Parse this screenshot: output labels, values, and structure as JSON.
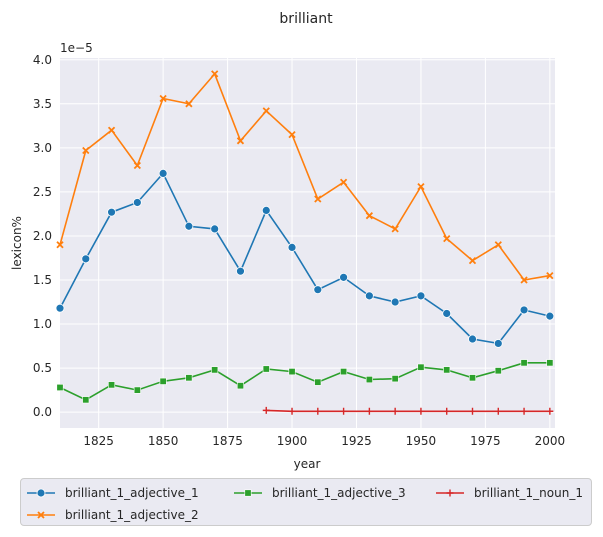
{
  "chart_data": {
    "type": "line",
    "title": "brilliant",
    "xlabel": "year",
    "ylabel": "lexicon%",
    "y_offset_label": "1e−5",
    "xlim": [
      1810,
      2002
    ],
    "ylim": [
      -0.18,
      4.02
    ],
    "x_ticks": [
      1825,
      1850,
      1875,
      1900,
      1925,
      1950,
      1975,
      2000
    ],
    "x_tick_labels": [
      "1825",
      "1850",
      "1875",
      "1900",
      "1925",
      "1950",
      "1975",
      "2000"
    ],
    "y_ticks": [
      0.0,
      0.5,
      1.0,
      1.5,
      2.0,
      2.5,
      3.0,
      3.5,
      4.0
    ],
    "y_tick_labels": [
      "0.0",
      "0.5",
      "1.0",
      "1.5",
      "2.0",
      "2.5",
      "3.0",
      "3.5",
      "4.0"
    ],
    "grid": true,
    "legend_position": "bottom",
    "series": [
      {
        "name": "brilliant_1_adjective_1",
        "color": "#1f77b4",
        "marker": "circle",
        "x": [
          1810,
          1820,
          1830,
          1840,
          1850,
          1860,
          1870,
          1880,
          1890,
          1900,
          1910,
          1920,
          1930,
          1940,
          1950,
          1960,
          1970,
          1980,
          1990,
          2000
        ],
        "y": [
          1.18,
          1.74,
          2.27,
          2.38,
          2.71,
          2.11,
          2.08,
          1.6,
          2.29,
          1.87,
          1.39,
          1.53,
          1.32,
          1.25,
          1.32,
          1.12,
          0.83,
          0.78,
          1.16,
          1.09
        ]
      },
      {
        "name": "brilliant_1_adjective_2",
        "color": "#ff7f0e",
        "marker": "x",
        "x": [
          1810,
          1820,
          1830,
          1840,
          1850,
          1860,
          1870,
          1880,
          1890,
          1900,
          1910,
          1920,
          1930,
          1940,
          1950,
          1960,
          1970,
          1980,
          1990,
          2000
        ],
        "y": [
          1.9,
          2.97,
          3.2,
          2.8,
          3.56,
          3.5,
          3.84,
          3.08,
          3.42,
          3.15,
          2.42,
          2.61,
          2.23,
          2.08,
          2.56,
          1.97,
          1.72,
          1.9,
          1.5,
          1.55
        ]
      },
      {
        "name": "brilliant_1_adjective_3",
        "color": "#2ca02c",
        "marker": "square",
        "x": [
          1810,
          1820,
          1830,
          1840,
          1850,
          1860,
          1870,
          1880,
          1890,
          1900,
          1910,
          1920,
          1930,
          1940,
          1950,
          1960,
          1970,
          1980,
          1990,
          2000
        ],
        "y": [
          0.28,
          0.14,
          0.31,
          0.25,
          0.35,
          0.39,
          0.48,
          0.3,
          0.49,
          0.46,
          0.34,
          0.46,
          0.37,
          0.38,
          0.51,
          0.48,
          0.39,
          0.47,
          0.56,
          0.56
        ]
      },
      {
        "name": "brilliant_1_noun_1",
        "color": "#d62728",
        "marker": "plus",
        "x": [
          1890,
          1900,
          1910,
          1920,
          1930,
          1940,
          1950,
          1960,
          1970,
          1980,
          1990,
          2000
        ],
        "y": [
          0.02,
          0.01,
          0.01,
          0.01,
          0.01,
          0.01,
          0.01,
          0.01,
          0.01,
          0.01,
          0.01,
          0.01
        ]
      }
    ]
  }
}
